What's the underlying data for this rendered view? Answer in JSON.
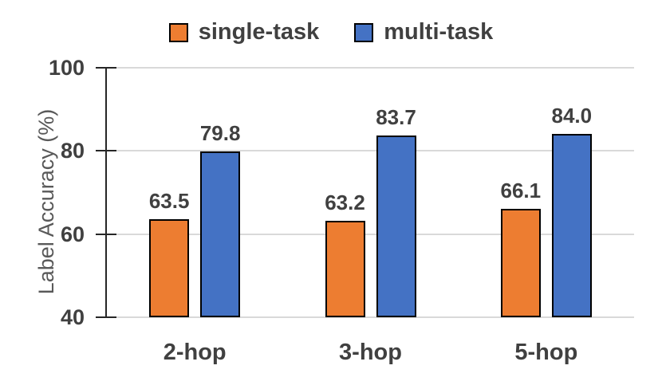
{
  "chart_data": {
    "type": "bar",
    "categories": [
      "2-hop",
      "3-hop",
      "5-hop"
    ],
    "series": [
      {
        "name": "single-task",
        "color": "#ED7D31",
        "values": [
          63.5,
          63.2,
          66.1
        ]
      },
      {
        "name": "multi-task",
        "color": "#4472C4",
        "values": [
          79.8,
          83.7,
          84.0
        ]
      }
    ],
    "value_label_decimals": 1,
    "title": "",
    "xlabel": "",
    "ylabel": "Label Accuracy (%)",
    "ylim": [
      40,
      100
    ],
    "yticks": [
      100,
      80,
      60,
      40
    ],
    "grid": true,
    "legend_position": "top",
    "bar_border_color": "#000000",
    "gridline_color": "#D9D9D9",
    "axis_color": "#262626",
    "label_text_color": "#404040",
    "axis_title_color": "#595959",
    "background_color": "#FFFFFF"
  }
}
